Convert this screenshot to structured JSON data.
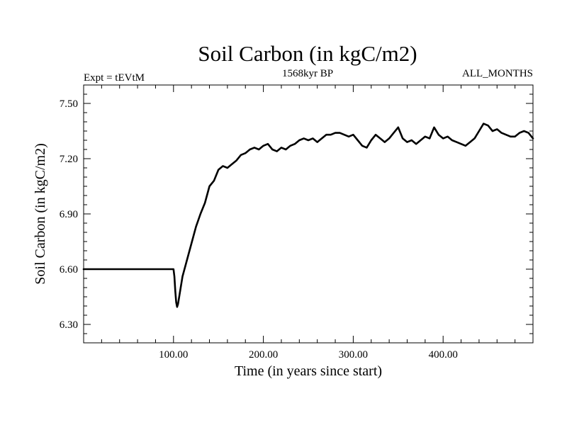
{
  "chart_data": {
    "type": "line",
    "title": "Soil Carbon (in kgC/m2)",
    "subtitle": "1568kyr BP",
    "left_label": "Expt = tEVtM",
    "right_label": "ALL_MONTHS",
    "xlabel": "Time (in years since start)",
    "ylabel": "Soil Carbon (in kgC/m2)",
    "xlim": [
      0,
      500
    ],
    "ylim": [
      6.2,
      7.6
    ],
    "x_ticks": [
      {
        "value": 100,
        "label": "100.00"
      },
      {
        "value": 200,
        "label": "200.00"
      },
      {
        "value": 300,
        "label": "300.00"
      },
      {
        "value": 400,
        "label": "400.00"
      }
    ],
    "y_ticks": [
      {
        "value": 6.3,
        "label": "6.30"
      },
      {
        "value": 6.6,
        "label": "6.60"
      },
      {
        "value": 6.9,
        "label": "6.90"
      },
      {
        "value": 7.2,
        "label": "7.20"
      },
      {
        "value": 7.5,
        "label": "7.50"
      }
    ],
    "series": [
      {
        "name": "Soil Carbon",
        "color": "#000000",
        "x": [
          0,
          100,
          101,
          102,
          103,
          104,
          105,
          107,
          110,
          115,
          120,
          125,
          130,
          135,
          140,
          145,
          150,
          155,
          160,
          165,
          170,
          175,
          180,
          185,
          190,
          195,
          200,
          205,
          210,
          215,
          220,
          225,
          230,
          235,
          240,
          245,
          250,
          255,
          260,
          265,
          270,
          275,
          280,
          285,
          290,
          295,
          300,
          305,
          310,
          315,
          320,
          325,
          330,
          335,
          340,
          345,
          350,
          355,
          360,
          365,
          370,
          375,
          380,
          385,
          390,
          395,
          400,
          405,
          410,
          415,
          420,
          425,
          430,
          435,
          440,
          445,
          450,
          455,
          460,
          465,
          470,
          475,
          480,
          485,
          490,
          495,
          500
        ],
        "values": [
          6.6,
          6.6,
          6.56,
          6.48,
          6.42,
          6.395,
          6.41,
          6.47,
          6.56,
          6.65,
          6.74,
          6.83,
          6.9,
          6.96,
          7.05,
          7.08,
          7.14,
          7.16,
          7.15,
          7.17,
          7.19,
          7.22,
          7.23,
          7.25,
          7.26,
          7.25,
          7.27,
          7.28,
          7.25,
          7.24,
          7.26,
          7.25,
          7.27,
          7.28,
          7.3,
          7.31,
          7.3,
          7.31,
          7.29,
          7.31,
          7.33,
          7.33,
          7.34,
          7.34,
          7.33,
          7.32,
          7.33,
          7.3,
          7.27,
          7.26,
          7.3,
          7.33,
          7.31,
          7.29,
          7.31,
          7.34,
          7.37,
          7.31,
          7.29,
          7.3,
          7.28,
          7.3,
          7.32,
          7.31,
          7.37,
          7.33,
          7.31,
          7.32,
          7.3,
          7.29,
          7.28,
          7.27,
          7.29,
          7.31,
          7.35,
          7.39,
          7.38,
          7.35,
          7.36,
          7.34,
          7.33,
          7.32,
          7.32,
          7.34,
          7.35,
          7.34,
          7.31
        ]
      }
    ]
  }
}
